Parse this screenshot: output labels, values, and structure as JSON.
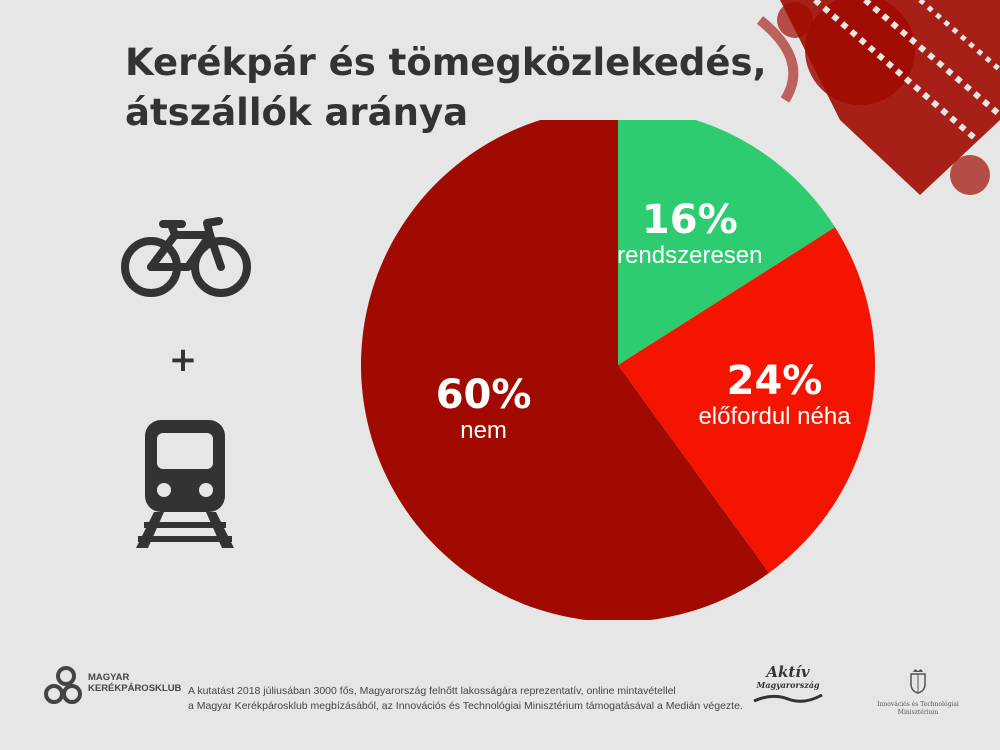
{
  "title": {
    "line1": "Kerékpár és tömegközlekedés,",
    "line2": "átszállók aránya"
  },
  "icons": {
    "top": "bicycle-icon",
    "plus": "+",
    "bottom": "train-icon"
  },
  "chart_data": {
    "type": "pie",
    "start_angle_deg": 0,
    "direction": "clockwise",
    "slices": [
      {
        "label": "rendszeresen",
        "value": 16,
        "value_label": "16%",
        "color": "#2ecc71"
      },
      {
        "label": "előfordul néha",
        "value": 24,
        "value_label": "24%",
        "color": "#f51400"
      },
      {
        "label": "nem",
        "value": 60,
        "value_label": "60%",
        "color": "#a00a00"
      }
    ]
  },
  "footer": {
    "logo_name_line1": "MAGYAR",
    "logo_name_line2": "KERÉKPÁROSKLUB",
    "note_line1": "A kutatást 2018 júliusában 3000 fős, Magyarország felnőtt lakosságára reprezentatív, online mintavétellel",
    "note_line2": "a Magyar Kerékpárosklub megbízásából, az Innovációs és Technológiai Minisztérium támogatásával a Medián végezte.",
    "aktiv_line1": "Aktív",
    "aktiv_line2": "Magyarország",
    "ministry_line1": "Innovációs és Technológiai",
    "ministry_line2": "Minisztérium"
  },
  "colors": {
    "background": "#e6e6e6",
    "text": "#333333",
    "decoration": "#a00a00"
  }
}
